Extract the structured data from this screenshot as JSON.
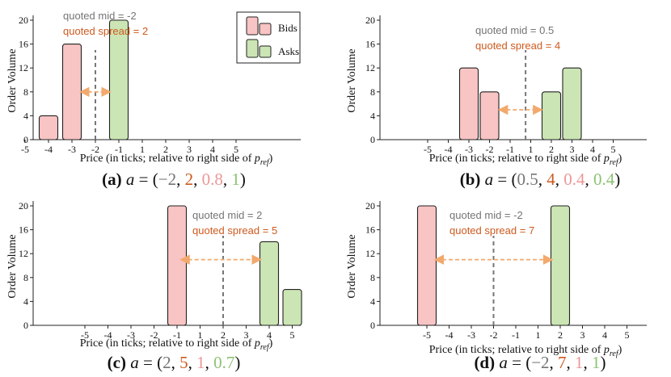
{
  "colors": {
    "bid_fill": "#f8c4c4",
    "ask_fill": "#cbe5b4",
    "gray_text": "#757575",
    "orange_text": "#cd5a1e",
    "arrow": "#f2a96d",
    "mid_line": "#777777",
    "pink_text": "#ee9696",
    "green_text": "#8cc373"
  },
  "legend": {
    "bids_label": "Bids",
    "asks_label": "Asks"
  },
  "chart_data": [
    {
      "type": "bar",
      "panel": "a",
      "caption_label": "(a)",
      "caption_var": "a",
      "caption_values": [
        "−2",
        "2",
        "0.8",
        "1"
      ],
      "ylabel": "Order Volume",
      "xlabel": "Price (in ticks; relative to right side of",
      "xlabel_math": "p",
      "xlabel_sub": "ref",
      "xlabel_close": ")",
      "x_ticks": [
        -5,
        -4,
        -3,
        -2,
        -1,
        1,
        2,
        3,
        4,
        5
      ],
      "x_tick_labels": [
        "-5",
        "-4",
        "-3",
        "-2",
        "-1",
        "1",
        "2",
        "3",
        "4",
        "5"
      ],
      "y_ticks": [
        0,
        4,
        8,
        12,
        16,
        20
      ],
      "y_tick_labels": [
        "0",
        "4",
        "8",
        "12",
        "16",
        "20"
      ],
      "ylim": [
        0,
        20
      ],
      "bids": [
        {
          "price": -4,
          "volume": 4
        },
        {
          "price": -3,
          "volume": 16
        }
      ],
      "asks": [
        {
          "price": -1,
          "volume": 20
        }
      ],
      "mid": -2,
      "spread_arrow": [
        -2.6,
        -1.4
      ],
      "spread_arrow_volume": 8,
      "annotation_mid": "quoted mid = -2",
      "annotation_spread": "quoted spread = 2",
      "annotation_position": "top-left",
      "legend": "top-right"
    },
    {
      "type": "bar",
      "panel": "b",
      "caption_label": "(b)",
      "caption_var": "a",
      "caption_values": [
        "0.5",
        "4",
        "0.4",
        "0.4"
      ],
      "ylabel": "Order Volume",
      "xlabel": "Price (in ticks; relative to right side of",
      "xlabel_math": "p",
      "xlabel_sub": "ref",
      "xlabel_close": ")",
      "x_ticks": [
        -5,
        -4,
        -3,
        -2,
        -1,
        1,
        2,
        3,
        4,
        5
      ],
      "x_tick_labels": [
        "-5",
        "-4",
        "-3",
        "-2",
        "-1",
        "1",
        "2",
        "3",
        "4",
        "5"
      ],
      "y_ticks": [
        0,
        4,
        8,
        12,
        16,
        20
      ],
      "y_tick_labels": [
        "0",
        "4",
        "8",
        "12",
        "16",
        "20"
      ],
      "ylim": [
        0,
        20
      ],
      "bids": [
        {
          "price": -3,
          "volume": 12
        },
        {
          "price": -2,
          "volume": 8
        }
      ],
      "asks": [
        {
          "price": 2,
          "volume": 8
        },
        {
          "price": 3,
          "volume": 12
        }
      ],
      "mid": 0.5,
      "spread_arrow": [
        -1.5,
        1.5
      ],
      "spread_arrow_volume": 5,
      "annotation_mid": "quoted mid = 0.5",
      "annotation_spread": "quoted spread = 4",
      "annotation_position": "top-center"
    },
    {
      "type": "bar",
      "panel": "c",
      "caption_label": "(c)",
      "caption_var": "a",
      "caption_values": [
        "2",
        "5",
        "1",
        "0.7"
      ],
      "ylabel": "Order Volume",
      "xlabel": "Price (in ticks; relative to right side of",
      "xlabel_math": "p",
      "xlabel_sub": "ref",
      "xlabel_close": ")",
      "x_ticks": [
        -5,
        -4,
        -3,
        -2,
        -1,
        1,
        2,
        3,
        4,
        5
      ],
      "x_tick_labels": [
        "-5",
        "-4",
        "-3",
        "-2",
        "-1",
        "1",
        "2",
        "3",
        "4",
        "5"
      ],
      "y_ticks": [
        0,
        4,
        8,
        12,
        16,
        20
      ],
      "y_tick_labels": [
        "0",
        "4",
        "8",
        "12",
        "16",
        "20"
      ],
      "ylim": [
        0,
        20
      ],
      "bids": [
        {
          "price": -1,
          "volume": 20
        }
      ],
      "asks": [
        {
          "price": 4,
          "volume": 14
        },
        {
          "price": 5,
          "volume": 6
        }
      ],
      "mid": 2,
      "spread_arrow": [
        -0.6,
        3.6
      ],
      "spread_arrow_volume": 11,
      "annotation_mid": "quoted mid = 2",
      "annotation_spread": "quoted spread = 5",
      "annotation_position": "top-center"
    },
    {
      "type": "bar",
      "panel": "d",
      "caption_label": "(d)",
      "caption_var": "a",
      "caption_values": [
        "−2",
        "7",
        "1",
        "1"
      ],
      "ylabel": "Order Volume",
      "xlabel": "Price (in ticks; relative to right side of",
      "xlabel_math": "p",
      "xlabel_sub": "ref",
      "xlabel_close": ")",
      "x_ticks": [
        -5,
        -4,
        -3,
        -2,
        -1,
        1,
        2,
        3,
        4,
        5
      ],
      "x_tick_labels": [
        "-5",
        "-4",
        "-3",
        "-2",
        "-1",
        "1",
        "2",
        "3",
        "4",
        "5"
      ],
      "y_ticks": [
        0,
        4,
        8,
        12,
        16,
        20
      ],
      "y_tick_labels": [
        "0",
        "4",
        "8",
        "12",
        "16",
        "20"
      ],
      "ylim": [
        0,
        20
      ],
      "bids": [
        {
          "price": -5,
          "volume": 20
        }
      ],
      "asks": [
        {
          "price": 2,
          "volume": 20
        }
      ],
      "mid": -2,
      "spread_arrow": [
        -4.6,
        1.6
      ],
      "spread_arrow_volume": 11,
      "annotation_mid": "quoted mid = -2",
      "annotation_spread": "quoted spread = 7",
      "annotation_position": "top-center"
    }
  ]
}
